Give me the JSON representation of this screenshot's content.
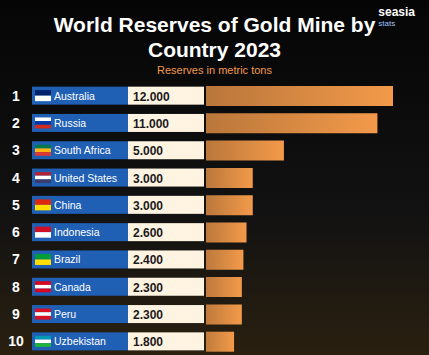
{
  "chart_data": {
    "type": "bar",
    "orientation": "horizontal",
    "title": "World Reserves of Gold Mine by Country 2023",
    "subtitle": "Reserves in metric tons",
    "brand": "seasia",
    "brand_sub": "stats",
    "ranks": [
      1,
      2,
      3,
      4,
      5,
      6,
      7,
      8,
      9,
      10
    ],
    "categories": [
      "Australia",
      "Russia",
      "South Africa",
      "United States",
      "China",
      "Indonesia",
      "Brazil",
      "Canada",
      "Peru",
      "Uzbekistan"
    ],
    "values": [
      12000,
      11000,
      5000,
      3000,
      3000,
      2600,
      2400,
      2300,
      2300,
      1800
    ],
    "value_labels": [
      "12.000",
      "11.000",
      "5.000",
      "3.000",
      "3.000",
      "2.600",
      "2.400",
      "2.300",
      "2.300",
      "1.800"
    ],
    "color": "#f39a4a",
    "xlim": [
      0,
      12000
    ],
    "data_labels": true,
    "tick_labels": "y",
    "grid": false
  }
}
